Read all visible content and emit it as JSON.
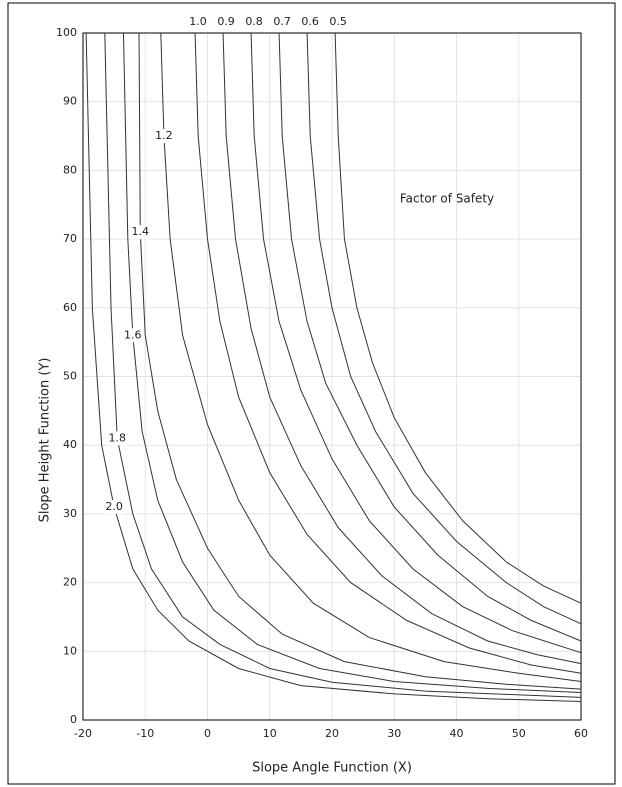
{
  "chart_data": {
    "type": "line",
    "annotation": "Factor of Safety",
    "x_label": "Slope Angle Function  (X)",
    "y_label": "Slope Height Function  (Y)",
    "xlim": [
      -20,
      60
    ],
    "ylim": [
      0,
      100
    ],
    "xticks": [
      -20,
      -10,
      0,
      10,
      20,
      30,
      40,
      50,
      60
    ],
    "yticks": [
      0,
      10,
      20,
      30,
      40,
      50,
      60,
      70,
      80,
      90,
      100
    ],
    "grid": true,
    "series": [
      {
        "name": "0.5",
        "color": "#333333",
        "x": [
          20.5,
          21,
          22,
          24,
          26.5,
          30,
          35,
          41,
          48,
          54,
          60
        ],
        "values": [
          100,
          85,
          70,
          60,
          52,
          44,
          36,
          29,
          23,
          19.5,
          17
        ]
      },
      {
        "name": "0.6",
        "color": "#333333",
        "x": [
          16,
          16.5,
          18,
          20,
          23,
          27,
          33,
          40,
          48,
          54,
          60
        ],
        "values": [
          100,
          85,
          70,
          60,
          50,
          42,
          33,
          26,
          20,
          16.5,
          14
        ]
      },
      {
        "name": "0.7",
        "color": "#333333",
        "x": [
          11.5,
          12,
          13.5,
          16,
          19,
          24,
          30,
          37,
          45,
          52,
          60
        ],
        "values": [
          100,
          85,
          70,
          58,
          49,
          40,
          31,
          24,
          18,
          14.5,
          11.5
        ]
      },
      {
        "name": "0.8",
        "color": "#333333",
        "x": [
          7,
          7.5,
          9,
          11.5,
          15,
          20,
          26,
          33,
          41,
          49,
          60
        ],
        "values": [
          100,
          85,
          70,
          58,
          48,
          38,
          29,
          22,
          16.5,
          13,
          9.8
        ]
      },
      {
        "name": "0.9",
        "color": "#333333",
        "x": [
          2.5,
          3,
          4.5,
          7,
          10,
          15,
          21,
          28,
          36,
          45,
          53,
          60
        ],
        "values": [
          100,
          85,
          70,
          57,
          47,
          37,
          28,
          21,
          15.5,
          11.5,
          9.5,
          8.2
        ]
      },
      {
        "name": "1.0",
        "color": "#333333",
        "x": [
          -2,
          -1.5,
          0,
          2,
          5,
          10,
          16,
          23,
          32,
          42,
          52,
          60
        ],
        "values": [
          100,
          85,
          70,
          58,
          47,
          36,
          27,
          20,
          14.5,
          10.5,
          8,
          6.8
        ]
      },
      {
        "name": "1.2",
        "color": "#333333",
        "x": [
          -7.5,
          -7,
          -6,
          -4,
          0,
          5,
          10,
          17,
          26,
          38,
          50,
          60
        ],
        "values": [
          100,
          85,
          70,
          56,
          43,
          32,
          24,
          17,
          12,
          8.5,
          6.8,
          5.6
        ]
      },
      {
        "name": "1.4",
        "color": "#333333",
        "x": [
          -11,
          -10.8,
          -10,
          -8,
          -5,
          0,
          5,
          12,
          22,
          35,
          48,
          60
        ],
        "values": [
          100,
          71,
          56,
          45,
          35,
          25,
          18,
          12.5,
          8.5,
          6.3,
          5.2,
          4.5
        ]
      },
      {
        "name": "1.6",
        "color": "#333333",
        "x": [
          -13.5,
          -12.8,
          -12,
          -10.5,
          -8,
          -4,
          1,
          8,
          18,
          30,
          45,
          60
        ],
        "values": [
          100,
          70,
          56,
          42,
          32,
          23,
          16,
          11,
          7.5,
          5.6,
          4.6,
          4
        ]
      },
      {
        "name": "1.8",
        "color": "#333333",
        "x": [
          -16.5,
          -15.5,
          -14.5,
          -12,
          -9,
          -4,
          2,
          10,
          20,
          35,
          60
        ],
        "values": [
          100,
          60,
          41,
          30,
          22,
          15,
          11,
          7.5,
          5.5,
          4.2,
          3.3
        ]
      },
      {
        "name": "2.0",
        "color": "#333333",
        "x": [
          -19.5,
          -18.5,
          -17,
          -15,
          -12,
          -8,
          -3,
          5,
          15,
          30,
          45,
          60
        ],
        "values": [
          100,
          60,
          40,
          31,
          22,
          16,
          11.5,
          7.5,
          5,
          3.8,
          3.1,
          2.7
        ]
      }
    ]
  }
}
